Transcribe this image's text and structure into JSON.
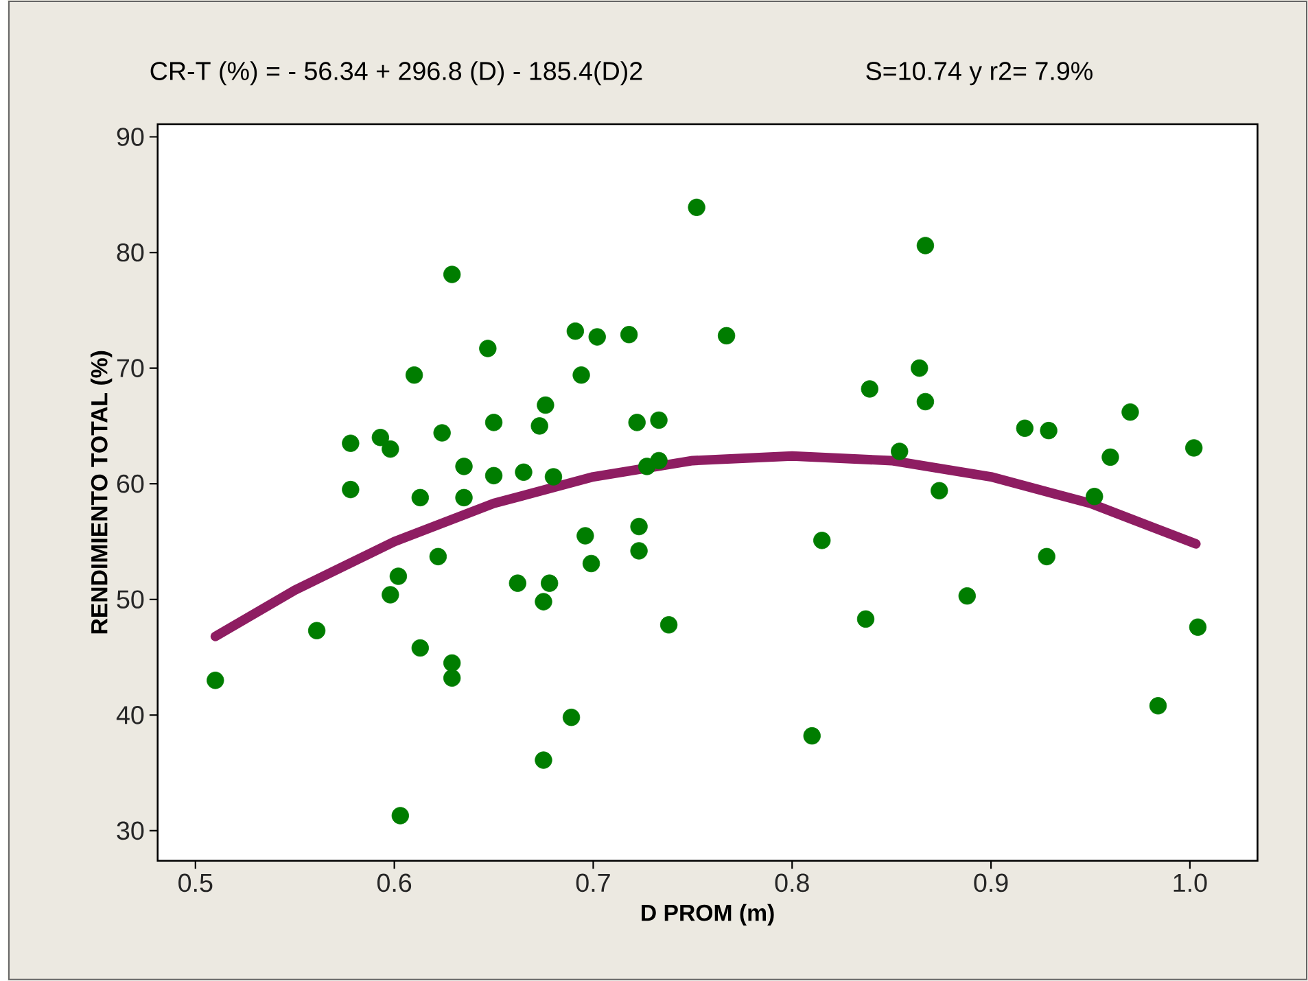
{
  "chart_data": {
    "type": "scatter",
    "title": "CR-T (%) =  - 56.34 + 296.8 (D) - 185.4(D)2",
    "subtitle": "S=10.74  y  r2= 7.9%",
    "xlabel": "D PROM (m)",
    "ylabel": "RENDIMIENTO TOTAL (%)",
    "xlim": [
      0.481,
      1.034
    ],
    "ylim": [
      27.4,
      91.1
    ],
    "xticks": [
      0.5,
      0.6,
      0.7,
      0.8,
      0.9,
      {
        "value": 1.0,
        "label": "1.0"
      }
    ],
    "yticks": [
      30,
      40,
      50,
      60,
      70,
      80,
      90
    ],
    "series": [
      {
        "marker": "circle",
        "color": "#007d00",
        "x": [
          0.51,
          0.561,
          0.578,
          0.578,
          0.593,
          0.598,
          0.598,
          0.602,
          0.603,
          0.61,
          0.613,
          0.613,
          0.624,
          0.622,
          0.629,
          0.629,
          0.629,
          0.635,
          0.635,
          0.647,
          0.65,
          0.65,
          0.662,
          0.665,
          0.673,
          0.675,
          0.675,
          0.676,
          0.678,
          0.68,
          0.689,
          0.691,
          0.694,
          0.696,
          0.699,
          0.702,
          0.718,
          0.722,
          0.723,
          0.723,
          0.727,
          0.733,
          0.733,
          0.738,
          0.752,
          0.767,
          0.81,
          0.815,
          0.837,
          0.839,
          0.854,
          0.864,
          0.867,
          0.867,
          0.874,
          0.888,
          0.917,
          0.929,
          0.928,
          0.952,
          0.96,
          0.97,
          0.984,
          1.002,
          1.004
        ],
        "values": [
          43.0,
          47.3,
          59.5,
          63.5,
          64.0,
          63.0,
          50.4,
          52.0,
          31.3,
          69.4,
          45.8,
          58.8,
          64.4,
          53.7,
          78.1,
          44.5,
          43.2,
          61.5,
          58.8,
          71.7,
          65.3,
          60.7,
          51.4,
          61.0,
          65.0,
          49.8,
          36.1,
          66.8,
          51.4,
          60.6,
          39.8,
          73.2,
          69.4,
          55.5,
          53.1,
          72.7,
          72.9,
          65.3,
          56.3,
          54.2,
          61.5,
          62.0,
          65.5,
          47.8,
          83.9,
          72.8,
          38.2,
          55.1,
          48.3,
          68.2,
          62.8,
          70.0,
          67.1,
          80.6,
          59.4,
          50.3,
          64.8,
          64.6,
          53.7,
          58.9,
          62.3,
          66.2,
          40.8,
          63.1,
          47.6
        ]
      },
      {
        "type": "line",
        "marker": "none",
        "line_style": "solid",
        "color": "#8e1d62",
        "x": [
          0.51,
          0.55,
          0.6,
          0.65,
          0.7,
          0.75,
          0.8,
          0.85,
          0.9,
          0.95,
          1.003
        ],
        "values": [
          46.8,
          50.8,
          55.0,
          58.3,
          60.6,
          62.0,
          62.4,
          62.0,
          60.6,
          58.3,
          54.8
        ]
      }
    ]
  }
}
